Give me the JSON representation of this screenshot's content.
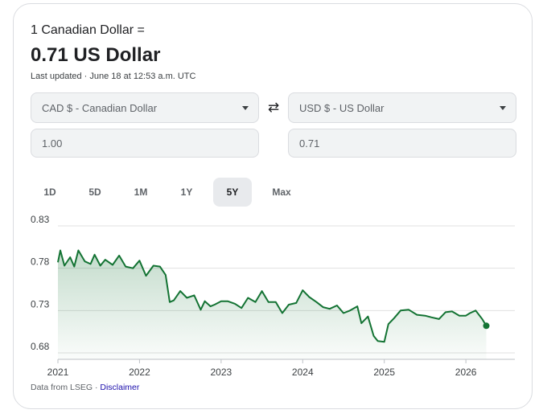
{
  "header": {
    "headline": "1 Canadian Dollar =",
    "rate": "0.71 US Dollar",
    "updated": "Last updated · June 18 at 12:53 a.m. UTC"
  },
  "converter": {
    "from_currency": "CAD $ - Canadian Dollar",
    "to_currency": "USD $ - US Dollar",
    "from_amount": "1.00",
    "to_amount": "0.71",
    "swap_icon": "swap-arrows-icon"
  },
  "tabs": [
    {
      "label": "1D",
      "active": false
    },
    {
      "label": "5D",
      "active": false
    },
    {
      "label": "1M",
      "active": false
    },
    {
      "label": "1Y",
      "active": false
    },
    {
      "label": "5Y",
      "active": true
    },
    {
      "label": "Max",
      "active": false
    }
  ],
  "footer": {
    "source": "Data from LSEG",
    "separator": " · ",
    "disclaimer": "Disclaimer"
  },
  "colors": {
    "line": "#137333",
    "area": "#137333",
    "grid": "#e0e0e0"
  },
  "chart_data": {
    "type": "area",
    "ylim": [
      0.68,
      0.83
    ],
    "yticks": [
      "0.83",
      "0.78",
      "0.73",
      "0.68"
    ],
    "xticks": [
      "2021",
      "2022",
      "2023",
      "2024",
      "2025",
      "2026"
    ],
    "grid": "horizontal",
    "series": [
      {
        "x": [
          2021.0,
          2021.03,
          2021.08,
          2021.15,
          2021.2,
          2021.25,
          2021.33,
          2021.4,
          2021.45,
          2021.52,
          2021.58,
          2021.67,
          2021.75,
          2021.83,
          2021.92,
          2022.0,
          2022.08,
          2022.17,
          2022.25,
          2022.32,
          2022.37,
          2022.42,
          2022.5,
          2022.58,
          2022.67,
          2022.75,
          2022.8,
          2022.87,
          2022.92,
          2023.0,
          2023.08,
          2023.17,
          2023.25,
          2023.33,
          2023.42,
          2023.5,
          2023.58,
          2023.67,
          2023.75,
          2023.83,
          2023.92,
          2024.0,
          2024.08,
          2024.17,
          2024.25,
          2024.33,
          2024.42,
          2024.5,
          2024.58,
          2024.67,
          2024.72,
          2024.8,
          2024.87,
          2024.92,
          2025.0,
          2025.05,
          2025.12,
          2025.2,
          2025.3,
          2025.4,
          2025.5,
          2025.58,
          2025.67,
          2025.75,
          2025.83,
          2025.92,
          2026.0,
          2026.05,
          2026.12,
          2026.2,
          2026.25
        ],
        "values": [
          0.787,
          0.801,
          0.783,
          0.793,
          0.782,
          0.801,
          0.788,
          0.785,
          0.796,
          0.783,
          0.79,
          0.784,
          0.795,
          0.782,
          0.78,
          0.789,
          0.771,
          0.783,
          0.782,
          0.772,
          0.74,
          0.742,
          0.753,
          0.745,
          0.748,
          0.731,
          0.741,
          0.735,
          0.737,
          0.741,
          0.741,
          0.738,
          0.733,
          0.745,
          0.74,
          0.753,
          0.74,
          0.74,
          0.727,
          0.737,
          0.739,
          0.754,
          0.746,
          0.74,
          0.734,
          0.732,
          0.736,
          0.727,
          0.73,
          0.735,
          0.715,
          0.723,
          0.7,
          0.694,
          0.693,
          0.714,
          0.721,
          0.73,
          0.731,
          0.725,
          0.724,
          0.722,
          0.72,
          0.728,
          0.729,
          0.724,
          0.724,
          0.727,
          0.73,
          0.72,
          0.712
        ]
      }
    ]
  }
}
